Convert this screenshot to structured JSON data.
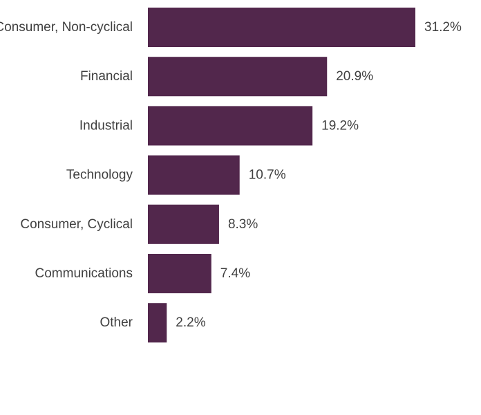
{
  "chart_data": {
    "type": "bar",
    "orientation": "horizontal",
    "categories": [
      "Consumer, Non-cyclical",
      "Financial",
      "Industrial",
      "Technology",
      "Consumer, Cyclical",
      "Communications",
      "Other"
    ],
    "values": [
      31.2,
      20.9,
      19.2,
      10.7,
      8.3,
      7.4,
      2.2
    ],
    "value_labels": [
      "31.2%",
      "20.9%",
      "19.2%",
      "10.7%",
      "8.3%",
      "7.4%",
      "2.2%"
    ],
    "bar_color": "#52274c",
    "label_color": "#3f3f3f",
    "xlim": [
      0,
      31.2
    ],
    "grid": false,
    "axes_visible": false
  }
}
